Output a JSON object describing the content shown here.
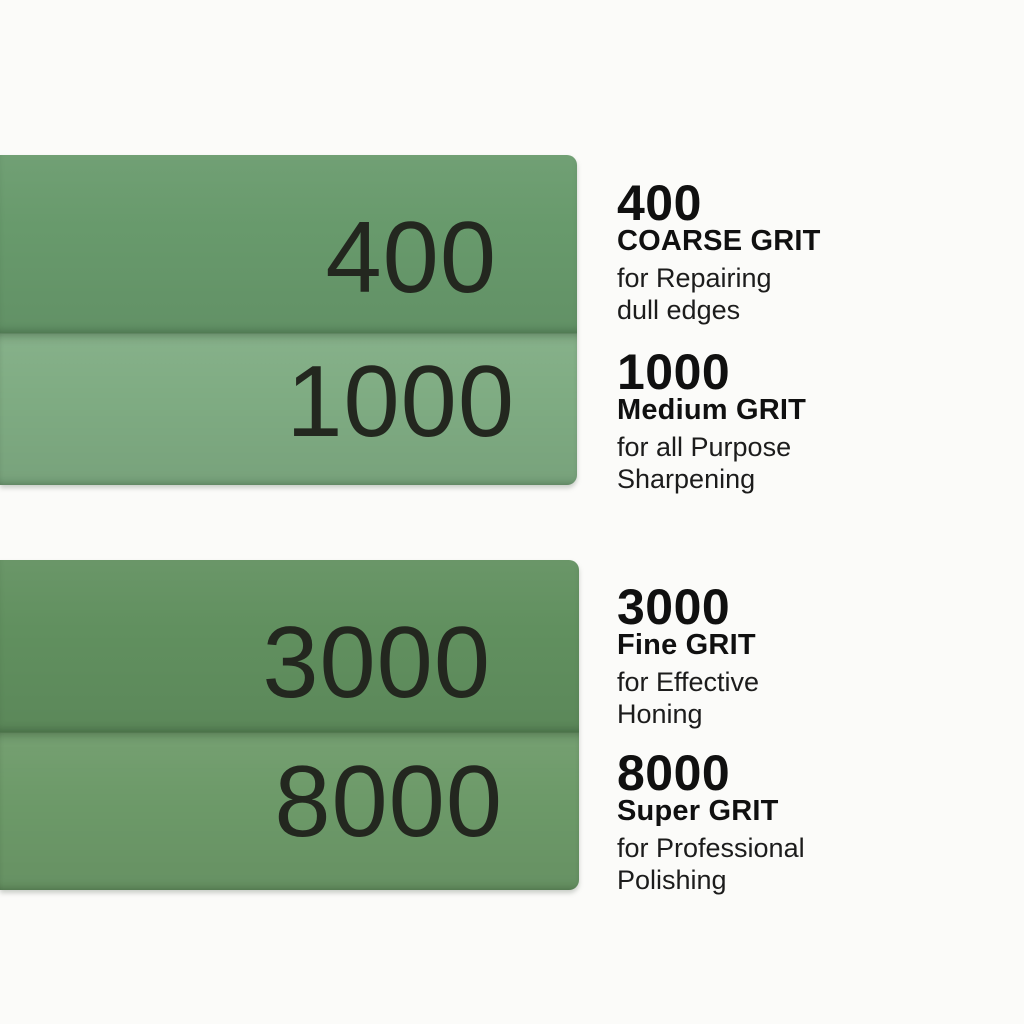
{
  "canvas": {
    "background": "#fbfbf9"
  },
  "stones": [
    {
      "name": "double-sided-whetstone-400-1000",
      "layers": [
        {
          "grit": "400",
          "color": "#689a6c"
        },
        {
          "grit": "1000",
          "color": "#7fac83"
        }
      ]
    },
    {
      "name": "double-sided-whetstone-3000-8000",
      "layers": [
        {
          "grit": "3000",
          "color": "#61905f"
        },
        {
          "grit": "8000",
          "color": "#6d9a69"
        }
      ]
    }
  ],
  "labels": [
    {
      "grit": "400",
      "grade": "COARSE GRIT",
      "desc": "for Repairing\ndull edges"
    },
    {
      "grit": "1000",
      "grade": "Medium GRIT",
      "desc": "for all Purpose\nSharpening"
    },
    {
      "grit": "3000",
      "grade": "Fine GRIT",
      "desc": "for Effective\nHoning"
    },
    {
      "grit": "8000",
      "grade": "Super GRIT",
      "desc": "for Professional\nPolishing"
    }
  ],
  "colors": {
    "number_ink": "#23271f",
    "label_ink": "#101010",
    "background": "#fbfbf9"
  }
}
